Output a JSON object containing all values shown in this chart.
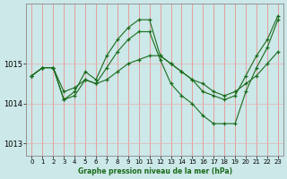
{
  "title": "Graphe pression niveau de la mer (hPa)",
  "background_color": "#cce8e8",
  "grid_color_v": "#f08080",
  "grid_color_h": "#e8b0b0",
  "line_color": "#1a6b1a",
  "xlim": [
    -0.5,
    23.5
  ],
  "ylim": [
    1012.7,
    1016.5
  ],
  "yticks": [
    1013,
    1014,
    1015
  ],
  "xticks": [
    0,
    1,
    2,
    3,
    4,
    5,
    6,
    7,
    8,
    9,
    10,
    11,
    12,
    13,
    14,
    15,
    16,
    17,
    18,
    19,
    20,
    21,
    22,
    23
  ],
  "series": [
    {
      "x": [
        0,
        1,
        2,
        3,
        4,
        5,
        6,
        7,
        8,
        9,
        10,
        11,
        12,
        13,
        14,
        15,
        16,
        17,
        18,
        19,
        20,
        21,
        22,
        23
      ],
      "y": [
        1014.7,
        1014.9,
        1014.9,
        1014.1,
        1014.3,
        1014.8,
        1014.6,
        1015.2,
        1015.6,
        1015.9,
        1016.1,
        1016.1,
        1015.2,
        1015.0,
        1014.8,
        1014.6,
        1014.3,
        1014.2,
        1014.1,
        1014.2,
        1014.7,
        1015.2,
        1015.6,
        1016.2
      ]
    },
    {
      "x": [
        0,
        1,
        2,
        3,
        4,
        5,
        6,
        7,
        8,
        9,
        10,
        11,
        12,
        13,
        14,
        15,
        16,
        17,
        18,
        19,
        20,
        21,
        22,
        23
      ],
      "y": [
        1014.7,
        1014.9,
        1014.9,
        1014.1,
        1014.2,
        1014.6,
        1014.5,
        1014.9,
        1015.3,
        1015.6,
        1015.8,
        1015.8,
        1015.1,
        1014.5,
        1014.2,
        1014.0,
        1013.7,
        1013.5,
        1013.5,
        1013.5,
        1014.3,
        1014.9,
        1015.4,
        1016.1
      ]
    },
    {
      "x": [
        0,
        1,
        2,
        3,
        4,
        5,
        6,
        7,
        8,
        9,
        10,
        11,
        12,
        13,
        14,
        15,
        16,
        17,
        18,
        19,
        20,
        21,
        22,
        23
      ],
      "y": [
        1014.7,
        1014.9,
        1014.9,
        1014.3,
        1014.4,
        1014.6,
        1014.5,
        1014.6,
        1014.8,
        1015.0,
        1015.1,
        1015.2,
        1015.2,
        1015.0,
        1014.8,
        1014.6,
        1014.5,
        1014.3,
        1014.2,
        1014.3,
        1014.5,
        1014.7,
        1015.0,
        1015.3
      ]
    }
  ]
}
